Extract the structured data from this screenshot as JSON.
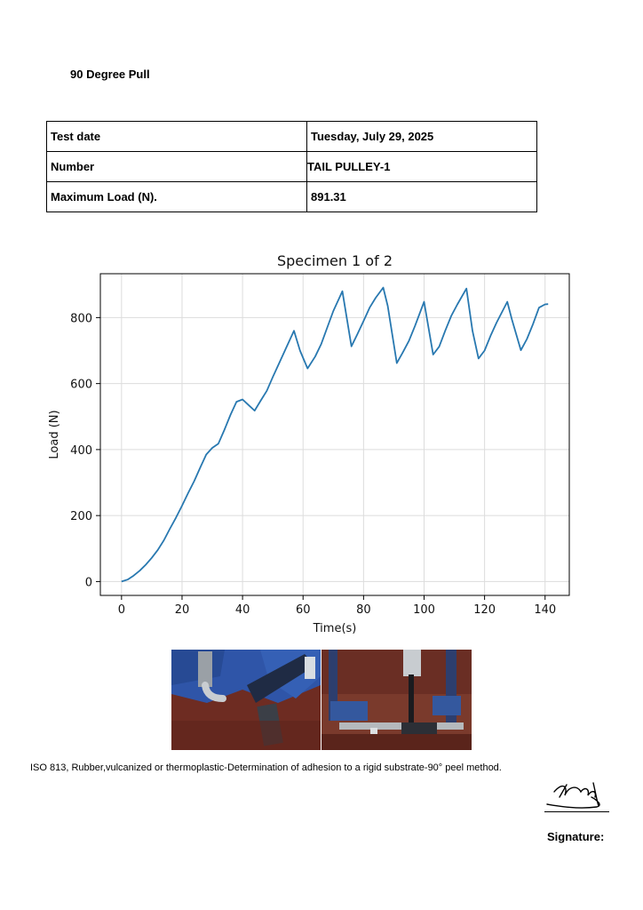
{
  "document": {
    "title": "90 Degree Pull",
    "info_rows": [
      {
        "label": "Test date",
        "value": "Tuesday, July 29, 2025"
      },
      {
        "label": "Number",
        "value": "TAIL PULLEY-1"
      },
      {
        "label": "Maximum Load (N).",
        "value": "891.31"
      }
    ],
    "standard_text": "ISO 813, Rubber,vulcanized or thermoplastic-Determination of adhesion to a rigid substrate-90° peel method.",
    "signature_label": "Signature:"
  },
  "chart_data": {
    "type": "line",
    "title": "Specimen 1 of 2",
    "xlabel": "Time(s)",
    "ylabel": "Load (N)",
    "xlim": [
      -7,
      148
    ],
    "ylim": [
      -42,
      933
    ],
    "xticks": [
      0,
      20,
      40,
      60,
      80,
      100,
      120,
      140
    ],
    "yticks": [
      0,
      200,
      400,
      600,
      800
    ],
    "grid": true,
    "color": "#2878b0",
    "series": [
      {
        "x": [
          0,
          2,
          4,
          6,
          8,
          10,
          12,
          14,
          16,
          18,
          20,
          22,
          24,
          26,
          28,
          30,
          32,
          34,
          36,
          38,
          40,
          42,
          44,
          46,
          48,
          50,
          52,
          54,
          57,
          59,
          61.5,
          64,
          66,
          68,
          70,
          73,
          76,
          78,
          80,
          82,
          84,
          86.5,
          88,
          91,
          93,
          95,
          97,
          100,
          103,
          105,
          107,
          109,
          111,
          114,
          116,
          118,
          120,
          122,
          124,
          127.5,
          129,
          132,
          134,
          136,
          138,
          140,
          141
        ],
        "y": [
          0,
          6,
          18,
          33,
          51,
          72,
          96,
          125,
          160,
          194,
          230,
          268,
          304,
          345,
          385,
          405,
          418,
          460,
          505,
          545,
          552,
          535,
          518,
          548,
          578,
          620,
          660,
          700,
          760,
          700,
          646,
          682,
          720,
          770,
          820,
          880,
          713,
          750,
          790,
          830,
          860,
          891,
          835,
          662,
          695,
          730,
          775,
          848,
          688,
          712,
          760,
          805,
          840,
          888,
          760,
          676,
          700,
          745,
          785,
          848,
          795,
          701,
          735,
          780,
          830,
          840,
          841
        ]
      }
    ]
  },
  "images": {
    "left_photo": "peel-fixture-clamp-photo",
    "right_photo": "peel-fixture-specimen-photo"
  }
}
